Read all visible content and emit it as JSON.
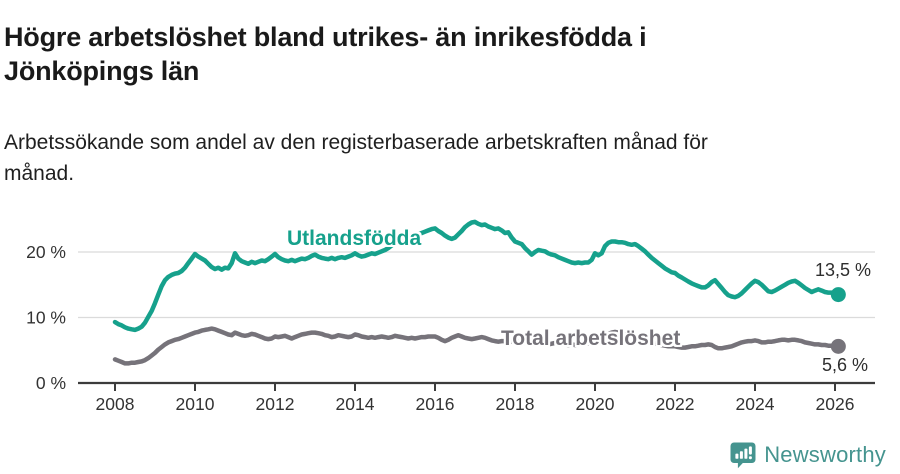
{
  "header": {
    "title": "Högre arbetslöshet bland utrikes- än inrikesfödda i Jönköpings län",
    "subtitle": "Arbetssökande som andel av den registerbaserade arbetskraften månad för månad."
  },
  "footer": {
    "brand": "Newsworthy",
    "logo_icon": "newsworthy-speech-bubble-barchart-icon"
  },
  "colors": {
    "foreign_born_line": "#16a18c",
    "total_line": "#76737a",
    "axis_text": "#333333",
    "axis_line": "#3c3c3c",
    "gridline": "#dbdbdb",
    "title_text": "#1a1a1a",
    "brand_teal": "#45948f",
    "background": "#ffffff"
  },
  "chart_data": {
    "type": "line",
    "title": "Högre arbetslöshet bland utrikes- än inrikesfödda i Jönköpings län",
    "subtitle": "Arbetssökande som andel av den registerbaserade arbetskraften månad för månad.",
    "x_start_year": 2008,
    "x_step_months": 1,
    "x_end": "2026-02",
    "xlim": [
      2007.1,
      2027
    ],
    "ylim": [
      0,
      27
    ],
    "grid": "horizontal",
    "legend": "inline-labels-on-lines",
    "y_ticks": [
      {
        "label": "0 %",
        "value": 0
      },
      {
        "label": "10 %",
        "value": 10
      },
      {
        "label": "20 %",
        "value": 20
      }
    ],
    "x_ticks": [
      {
        "label": "2008",
        "value": 2008
      },
      {
        "label": "2010",
        "value": 2010
      },
      {
        "label": "2012",
        "value": 2012
      },
      {
        "label": "2014",
        "value": 2014
      },
      {
        "label": "2016",
        "value": 2016
      },
      {
        "label": "2018",
        "value": 2018
      },
      {
        "label": "2020",
        "value": 2020
      },
      {
        "label": "2022",
        "value": 2022
      },
      {
        "label": "2024",
        "value": 2024
      },
      {
        "label": "2026",
        "value": 2026
      }
    ],
    "series": [
      {
        "name": "Utlandsfödda",
        "color": "#16a18c",
        "end_label": "13,5 %",
        "end_value": 13.5,
        "values": [
          9.3,
          9.0,
          8.8,
          8.5,
          8.3,
          8.2,
          8.1,
          8.3,
          8.6,
          9.2,
          10.1,
          11.0,
          12.2,
          13.5,
          14.8,
          15.7,
          16.2,
          16.5,
          16.7,
          16.8,
          17.1,
          17.6,
          18.3,
          19.0,
          19.7,
          19.3,
          19.0,
          18.7,
          18.2,
          17.7,
          17.4,
          17.6,
          17.3,
          17.6,
          17.5,
          18.3,
          19.8,
          19.0,
          18.6,
          18.4,
          18.2,
          18.5,
          18.3,
          18.5,
          18.7,
          18.6,
          18.9,
          19.3,
          19.7,
          19.2,
          18.9,
          18.7,
          18.6,
          18.8,
          18.6,
          18.8,
          19.0,
          18.9,
          19.1,
          19.4,
          19.6,
          19.3,
          19.1,
          19.0,
          18.9,
          19.1,
          18.9,
          19.1,
          19.2,
          19.1,
          19.3,
          19.5,
          19.8,
          19.5,
          19.3,
          19.4,
          19.6,
          19.8,
          19.7,
          19.9,
          20.1,
          20.3,
          20.6,
          21.0,
          21.4,
          21.7,
          22.0,
          22.3,
          22.5,
          22.6,
          22.6,
          22.7,
          22.9,
          23.1,
          23.3,
          23.5,
          23.6,
          23.2,
          22.9,
          22.5,
          22.2,
          22.0,
          22.2,
          22.7,
          23.2,
          23.8,
          24.2,
          24.5,
          24.6,
          24.3,
          24.1,
          24.2,
          23.9,
          23.7,
          23.5,
          23.6,
          23.3,
          22.9,
          23.0,
          22.2,
          21.6,
          21.4,
          21.2,
          20.6,
          20.1,
          19.6,
          20.0,
          20.3,
          20.2,
          20.1,
          19.8,
          19.6,
          19.5,
          19.2,
          19.0,
          18.8,
          18.6,
          18.4,
          18.3,
          18.4,
          18.3,
          18.4,
          18.4,
          18.8,
          19.8,
          19.5,
          19.8,
          20.9,
          21.4,
          21.6,
          21.6,
          21.5,
          21.5,
          21.4,
          21.2,
          21.1,
          21.2,
          20.9,
          20.5,
          20.1,
          19.6,
          19.1,
          18.7,
          18.3,
          17.9,
          17.5,
          17.2,
          16.9,
          16.8,
          16.4,
          16.1,
          15.8,
          15.5,
          15.2,
          15.0,
          14.8,
          14.6,
          14.6,
          14.9,
          15.4,
          15.7,
          15.1,
          14.5,
          13.9,
          13.4,
          13.2,
          13.1,
          13.3,
          13.7,
          14.2,
          14.7,
          15.2,
          15.6,
          15.4,
          15.0,
          14.5,
          14.0,
          13.9,
          14.1,
          14.4,
          14.7,
          15.0,
          15.3,
          15.5,
          15.6,
          15.3,
          14.9,
          14.5,
          14.2,
          13.9,
          14.1,
          14.3,
          14.1,
          13.9,
          13.8,
          13.8,
          13.6,
          13.5
        ]
      },
      {
        "name": "Total arbetslöshet",
        "color": "#76737a",
        "end_label": "5,6 %",
        "end_value": 5.6,
        "values": [
          3.6,
          3.4,
          3.2,
          3.0,
          3.0,
          3.1,
          3.1,
          3.2,
          3.3,
          3.5,
          3.8,
          4.2,
          4.6,
          5.1,
          5.5,
          5.9,
          6.2,
          6.4,
          6.6,
          6.7,
          6.9,
          7.1,
          7.3,
          7.5,
          7.7,
          7.8,
          8.0,
          8.1,
          8.2,
          8.3,
          8.2,
          8.0,
          7.8,
          7.6,
          7.4,
          7.3,
          7.7,
          7.5,
          7.3,
          7.2,
          7.3,
          7.5,
          7.4,
          7.2,
          7.0,
          6.8,
          6.7,
          6.8,
          7.1,
          7.0,
          7.1,
          7.2,
          7.0,
          6.8,
          7.0,
          7.2,
          7.4,
          7.5,
          7.6,
          7.7,
          7.7,
          7.6,
          7.5,
          7.3,
          7.2,
          7.0,
          7.1,
          7.3,
          7.2,
          7.1,
          7.0,
          7.1,
          7.4,
          7.3,
          7.1,
          7.0,
          6.9,
          7.0,
          6.9,
          7.0,
          7.1,
          7.0,
          6.9,
          7.0,
          7.2,
          7.1,
          7.0,
          6.9,
          6.8,
          6.9,
          6.8,
          6.9,
          7.0,
          7.0,
          7.1,
          7.1,
          7.1,
          6.9,
          6.6,
          6.4,
          6.6,
          6.9,
          7.1,
          7.3,
          7.1,
          6.9,
          6.8,
          6.7,
          6.8,
          6.9,
          7.0,
          6.9,
          6.7,
          6.5,
          6.4,
          6.3,
          6.4,
          6.4,
          6.3,
          6.3,
          6.4,
          6.3,
          6.2,
          6.1,
          6.0,
          6.0,
          5.9,
          6.0,
          6.0,
          5.9,
          5.9,
          6.0,
          6.1,
          6.0,
          5.9,
          5.9,
          5.8,
          5.9,
          5.8,
          5.9,
          5.9,
          6.0,
          6.0,
          6.1,
          6.3,
          6.2,
          6.4,
          7.1,
          7.5,
          7.7,
          7.8,
          7.7,
          7.6,
          7.4,
          7.3,
          7.3,
          7.2,
          7.1,
          6.9,
          6.7,
          6.4,
          6.2,
          6.0,
          5.9,
          5.8,
          5.7,
          5.6,
          5.6,
          5.6,
          5.5,
          5.4,
          5.4,
          5.5,
          5.6,
          5.6,
          5.7,
          5.8,
          5.8,
          5.9,
          5.8,
          5.5,
          5.3,
          5.3,
          5.4,
          5.5,
          5.6,
          5.8,
          6.0,
          6.2,
          6.3,
          6.4,
          6.4,
          6.5,
          6.4,
          6.2,
          6.2,
          6.3,
          6.3,
          6.4,
          6.5,
          6.6,
          6.6,
          6.5,
          6.6,
          6.6,
          6.5,
          6.4,
          6.2,
          6.1,
          6.0,
          5.9,
          5.9,
          5.8,
          5.8,
          5.7,
          5.7,
          5.6,
          5.6
        ]
      }
    ]
  }
}
